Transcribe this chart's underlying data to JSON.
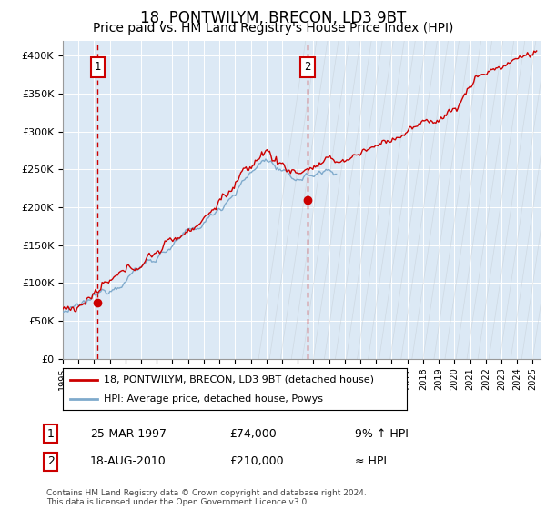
{
  "title": "18, PONTWILYM, BRECON, LD3 9BT",
  "subtitle": "Price paid vs. HM Land Registry's House Price Index (HPI)",
  "title_fontsize": 12,
  "subtitle_fontsize": 10,
  "xlim_start": 1995.0,
  "xlim_end": 2025.5,
  "ylim_bottom": 0,
  "ylim_top": 420000,
  "yticks": [
    0,
    50000,
    100000,
    150000,
    200000,
    250000,
    300000,
    350000,
    400000
  ],
  "ytick_labels": [
    "£0",
    "£50K",
    "£100K",
    "£150K",
    "£200K",
    "£250K",
    "£300K",
    "£350K",
    "£400K"
  ],
  "xticks": [
    1995,
    1996,
    1997,
    1998,
    1999,
    2000,
    2001,
    2002,
    2003,
    2004,
    2005,
    2006,
    2007,
    2008,
    2009,
    2010,
    2011,
    2012,
    2013,
    2014,
    2015,
    2016,
    2017,
    2018,
    2019,
    2020,
    2021,
    2022,
    2023,
    2024,
    2025
  ],
  "hpi_line_color": "#7faacc",
  "price_line_color": "#cc0000",
  "dot_color": "#cc0000",
  "vline_color": "#cc0000",
  "bg_color": "#dce9f5",
  "grid_color": "#ffffff",
  "marker_box_color": "#cc0000",
  "marker1_x": 1997.23,
  "marker1_y": 74000,
  "marker2_x": 2010.63,
  "marker2_y": 210000,
  "legend_line1": "18, PONTWILYM, BRECON, LD3 9BT (detached house)",
  "legend_line2": "HPI: Average price, detached house, Powys",
  "annotation1_date": "25-MAR-1997",
  "annotation1_price": "£74,000",
  "annotation1_hpi": "9% ↑ HPI",
  "annotation2_date": "18-AUG-2010",
  "annotation2_price": "£210,000",
  "annotation2_hpi": "≈ HPI",
  "footnote": "Contains HM Land Registry data © Crown copyright and database right 2024.\nThis data is licensed under the Open Government Licence v3.0.",
  "hpi_end_year": 2012.5,
  "diagonal_hatch_color": "#c0c8d0"
}
